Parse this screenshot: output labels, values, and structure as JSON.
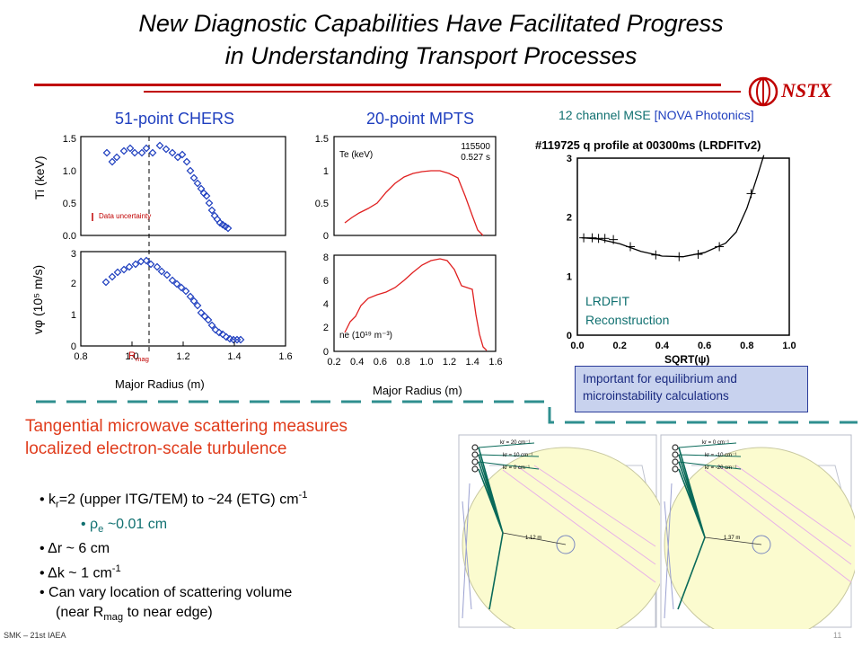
{
  "title_line1": "New Diagnostic Capabilities Have Facilitated Progress",
  "title_line2": "in Understanding Transport Processes",
  "logo_text": "NSTX",
  "cher": {
    "heading": "51-point CHERS",
    "xlabel": "Major Radius (m)",
    "top_ylabel": "Ti (keV)",
    "bottom_ylabel": "vφ (10⁵ m/s)",
    "legend": "Data uncertainty",
    "rmag_label": "R",
    "rmag_sub": "mag",
    "x_ticks": [
      "0.8",
      "1.0",
      "1.2",
      "1.4",
      "1.6"
    ],
    "top_y_ticks": [
      "0.0",
      "0.5",
      "1.0",
      "1.5"
    ],
    "bottom_y_ticks": [
      "0",
      "1",
      "2",
      "3"
    ]
  },
  "mpts": {
    "heading": "20-point MPTS",
    "xlabel": "Major Radius (m)",
    "shot": "115500",
    "time": "0.527 s",
    "te_label": "Te (keV)",
    "ne_label": "ne (10¹⁹ m⁻³)",
    "x_ticks": [
      "0.2",
      "0.4",
      "0.6",
      "0.8",
      "1.0",
      "1.2",
      "1.4",
      "1.6"
    ],
    "top_y_ticks": [
      "0",
      "0.5",
      "1",
      "1.5"
    ],
    "bottom_y_ticks": [
      "0",
      "2",
      "4",
      "6",
      "8"
    ]
  },
  "mse": {
    "heading_main": "12 channel MSE ",
    "heading_bracket": "[NOVA Photonics]",
    "plot_title": "#119725 q profile at 00300ms (LRDFITv2)",
    "xlabel": "SQRT(ψ)",
    "x_ticks": [
      "0.0",
      "0.2",
      "0.4",
      "0.6",
      "0.8",
      "1.0"
    ],
    "y_ticks": [
      "0",
      "1",
      "2",
      "3"
    ],
    "lrdfit_line1": "LRDFIT",
    "lrdfit_line2": "Reconstruction",
    "important_text": "Important for equilibrium and microinstability calculations"
  },
  "scattering": {
    "title_line1": "Tangential microwave scattering measures",
    "title_line2": "localized electron-scale turbulence",
    "b1_pre": "k",
    "b1_sub": "r",
    "b1_mid": "=2 (upper ITG/TEM) to ~24 (ETG) cm",
    "b1_sup": "-1",
    "b2_sym": "ρ",
    "b2_sub": "e",
    "b2_rest": " ~0.01 cm",
    "b3": "Δr ~ 6 cm",
    "b4_main": "Δk ~ 1 cm",
    "b4_sup": "-1",
    "b5": "Can vary location of scattering volume",
    "b6_pre": "(near R",
    "b6_sub": "mag",
    "b6_post": " to near edge)"
  },
  "diagram_left": {
    "labels": [
      "kr = 20 cm⁻¹",
      "kr = 10 cm⁻¹",
      "kr = 0 cm⁻¹"
    ],
    "dist": "1.12 m"
  },
  "diagram_right": {
    "labels": [
      "kr = 0 cm⁻¹",
      "kr = -10 cm⁻¹",
      "kr = -20 cm⁻¹"
    ],
    "dist": "1.37 m"
  },
  "footer": "SMK – 21st IAEA",
  "page_number": "11",
  "colors": {
    "red": "#c00000",
    "blue": "#1f3fbf",
    "teal": "#107070",
    "orange": "#e03c1c",
    "dash_teal": "#2f8f8f"
  }
}
